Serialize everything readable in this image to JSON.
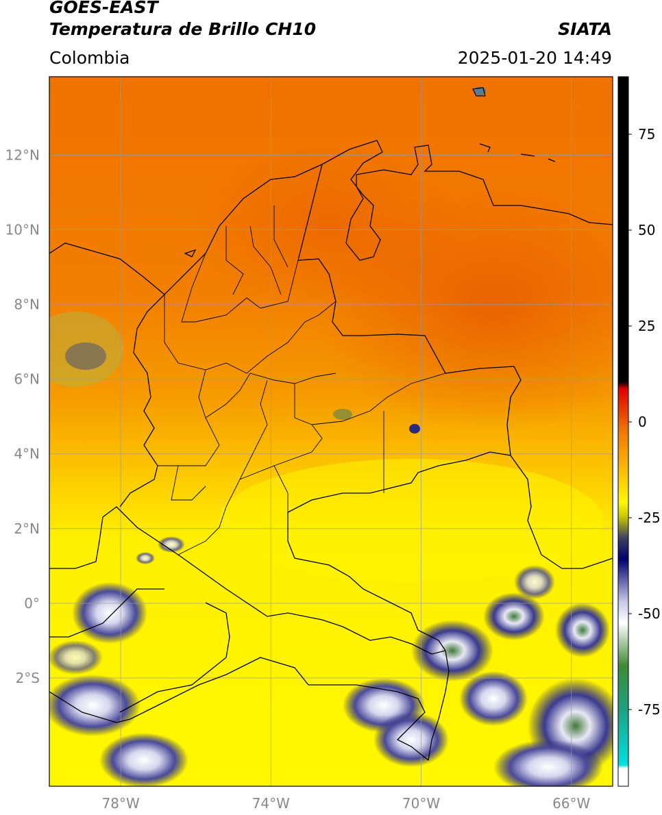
{
  "header": {
    "satellite": "GOES-EAST",
    "product": "Temperatura de Brillo CH10",
    "brand": "SIATA",
    "region": "Colombia",
    "timestamp": "2025-01-20 14:49"
  },
  "map": {
    "extent": {
      "lon_min": -79.9,
      "lon_max": -64.9,
      "lat_min": -4.9,
      "lat_max": 14.1
    },
    "lat_ticks": [
      {
        "value": 12,
        "label": "12°N"
      },
      {
        "value": 10,
        "label": "10°N"
      },
      {
        "value": 8,
        "label": "8°N"
      },
      {
        "value": 6,
        "label": "6°N"
      },
      {
        "value": 4,
        "label": "4°N"
      },
      {
        "value": 2,
        "label": "2°N"
      },
      {
        "value": 0,
        "label": "0°"
      },
      {
        "value": -2,
        "label": "2°S"
      }
    ],
    "lon_ticks": [
      {
        "value": -78,
        "label": "78°W"
      },
      {
        "value": -74,
        "label": "74°W"
      },
      {
        "value": -70,
        "label": "70°W"
      },
      {
        "value": -66,
        "label": "66°W"
      }
    ],
    "colors": {
      "warm": "#f07a00",
      "mid": "#fbc800",
      "cool": "#fff600",
      "cloud_blue": "#1a1a80",
      "cloud_white": "#e8e8f4",
      "cloud_green": "#3f7a3a",
      "grid": "#9a9a9a",
      "border": "#000000"
    }
  },
  "colorbar": {
    "range": [
      -95,
      90
    ],
    "ticks": [
      {
        "value": 75,
        "label": "75"
      },
      {
        "value": 50,
        "label": "50"
      },
      {
        "value": 25,
        "label": "25"
      },
      {
        "value": 0,
        "label": "0"
      },
      {
        "value": -25,
        "label": "-25"
      },
      {
        "value": -50,
        "label": "-50"
      },
      {
        "value": -75,
        "label": "-75"
      }
    ]
  }
}
